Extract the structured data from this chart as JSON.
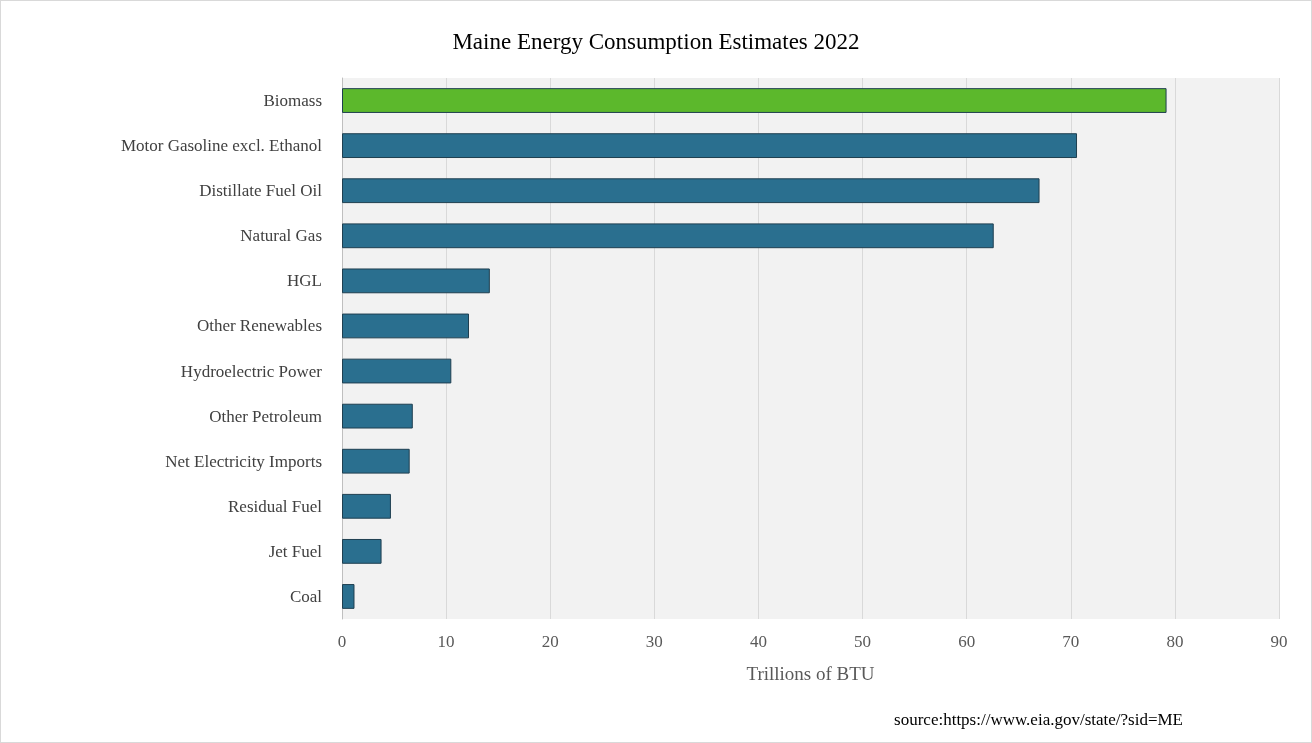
{
  "chart_data": {
    "type": "bar",
    "orientation": "horizontal",
    "title": "Maine Energy Consumption Estimates 2022",
    "xlabel": "Trillions of BTU",
    "categories": [
      "Biomass",
      "Motor Gasoline excl. Ethanol",
      "Distillate Fuel Oil",
      "Natural Gas",
      "HGL",
      "Other Renewables",
      "Hydroelectric Power",
      "Other Petroleum",
      "Net Electricity Imports",
      "Residual Fuel",
      "Jet Fuel",
      "Coal"
    ],
    "values": [
      79.2,
      70.6,
      67.0,
      62.6,
      14.2,
      12.2,
      10.5,
      6.8,
      6.5,
      4.7,
      3.8,
      1.2
    ],
    "colors": [
      "#5cb82c",
      "#2a6f8f",
      "#2a6f8f",
      "#2a6f8f",
      "#2a6f8f",
      "#2a6f8f",
      "#2a6f8f",
      "#2a6f8f",
      "#2a6f8f",
      "#2a6f8f",
      "#2a6f8f",
      "#2a6f8f"
    ],
    "xlim": [
      0,
      90
    ],
    "xticks": [
      0,
      10,
      20,
      30,
      40,
      50,
      60,
      70,
      80,
      90
    ],
    "grid": "x",
    "annotations": [
      "source:https://www.eia.gov/state/?sid=ME"
    ]
  }
}
